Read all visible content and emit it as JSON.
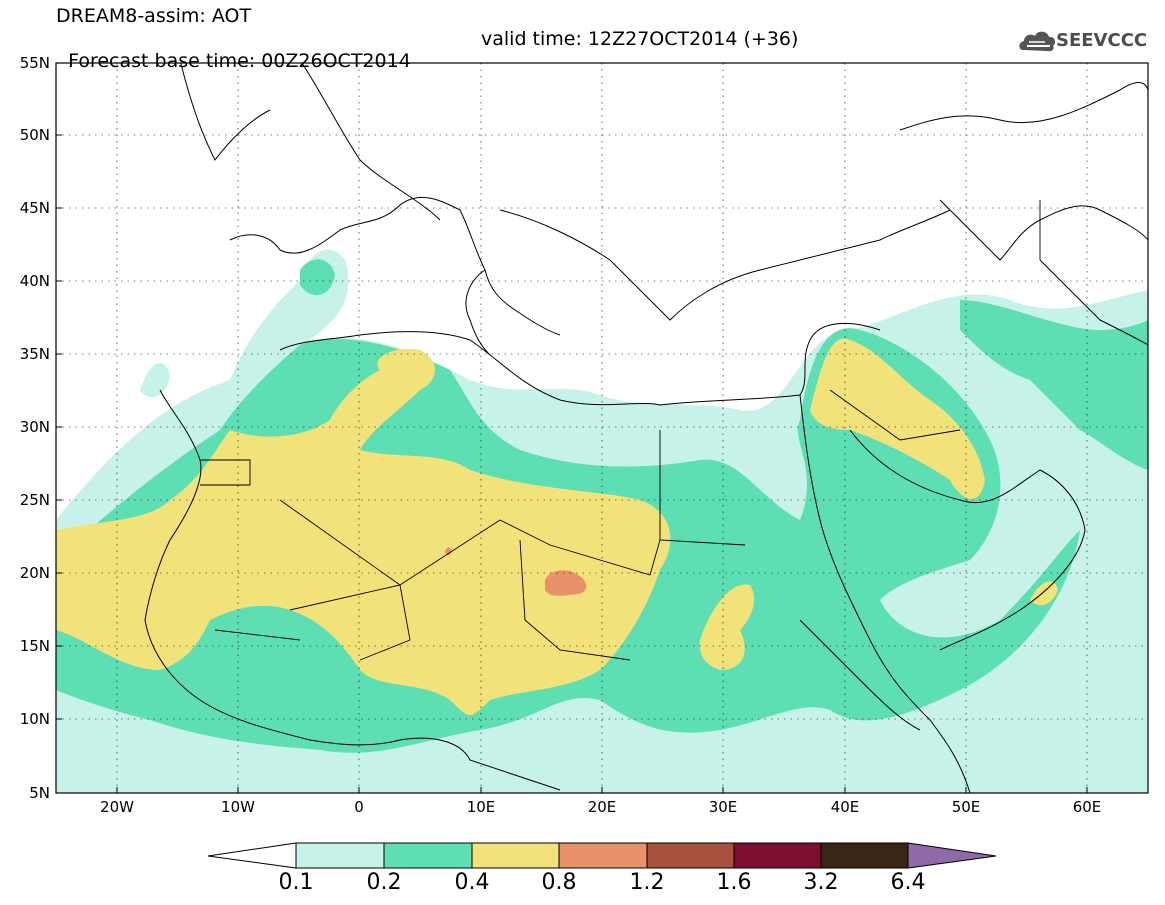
{
  "header": {
    "line1": "DREAM8-assim: AOT",
    "line2_base": "Forecast base time: 00Z26OCT2014",
    "line2_valid": "valid time: 12Z27OCT2014 (+36)"
  },
  "logo": {
    "text": "SEEVCCC",
    "icon": "cloud-icon"
  },
  "axes": {
    "lat_labels": [
      "55N",
      "50N",
      "45N",
      "40N",
      "35N",
      "30N",
      "25N",
      "20N",
      "15N",
      "10N",
      "5N"
    ],
    "lon_labels": [
      "20W",
      "10W",
      "0",
      "10E",
      "20E",
      "30E",
      "40E",
      "50E",
      "60E"
    ],
    "lat_range": [
      5,
      55
    ],
    "lon_range": [
      -25,
      65
    ]
  },
  "colorbar": {
    "labels": [
      "0.1",
      "0.2",
      "0.4",
      "0.8",
      "1.2",
      "1.6",
      "3.2",
      "6.4"
    ],
    "colors": [
      "#c6f2ea",
      "#5ddfb3",
      "#f2e27a",
      "#e9916a",
      "#a9513f",
      "#7a0f2e",
      "#3b2616",
      "#8e6ba8"
    ]
  },
  "colors": {
    "bin_0_1": "#c6f2ea",
    "bin_0_2": "#5ddfb3",
    "bin_0_4": "#f2e27a",
    "bin_0_8": "#e9916a"
  }
}
